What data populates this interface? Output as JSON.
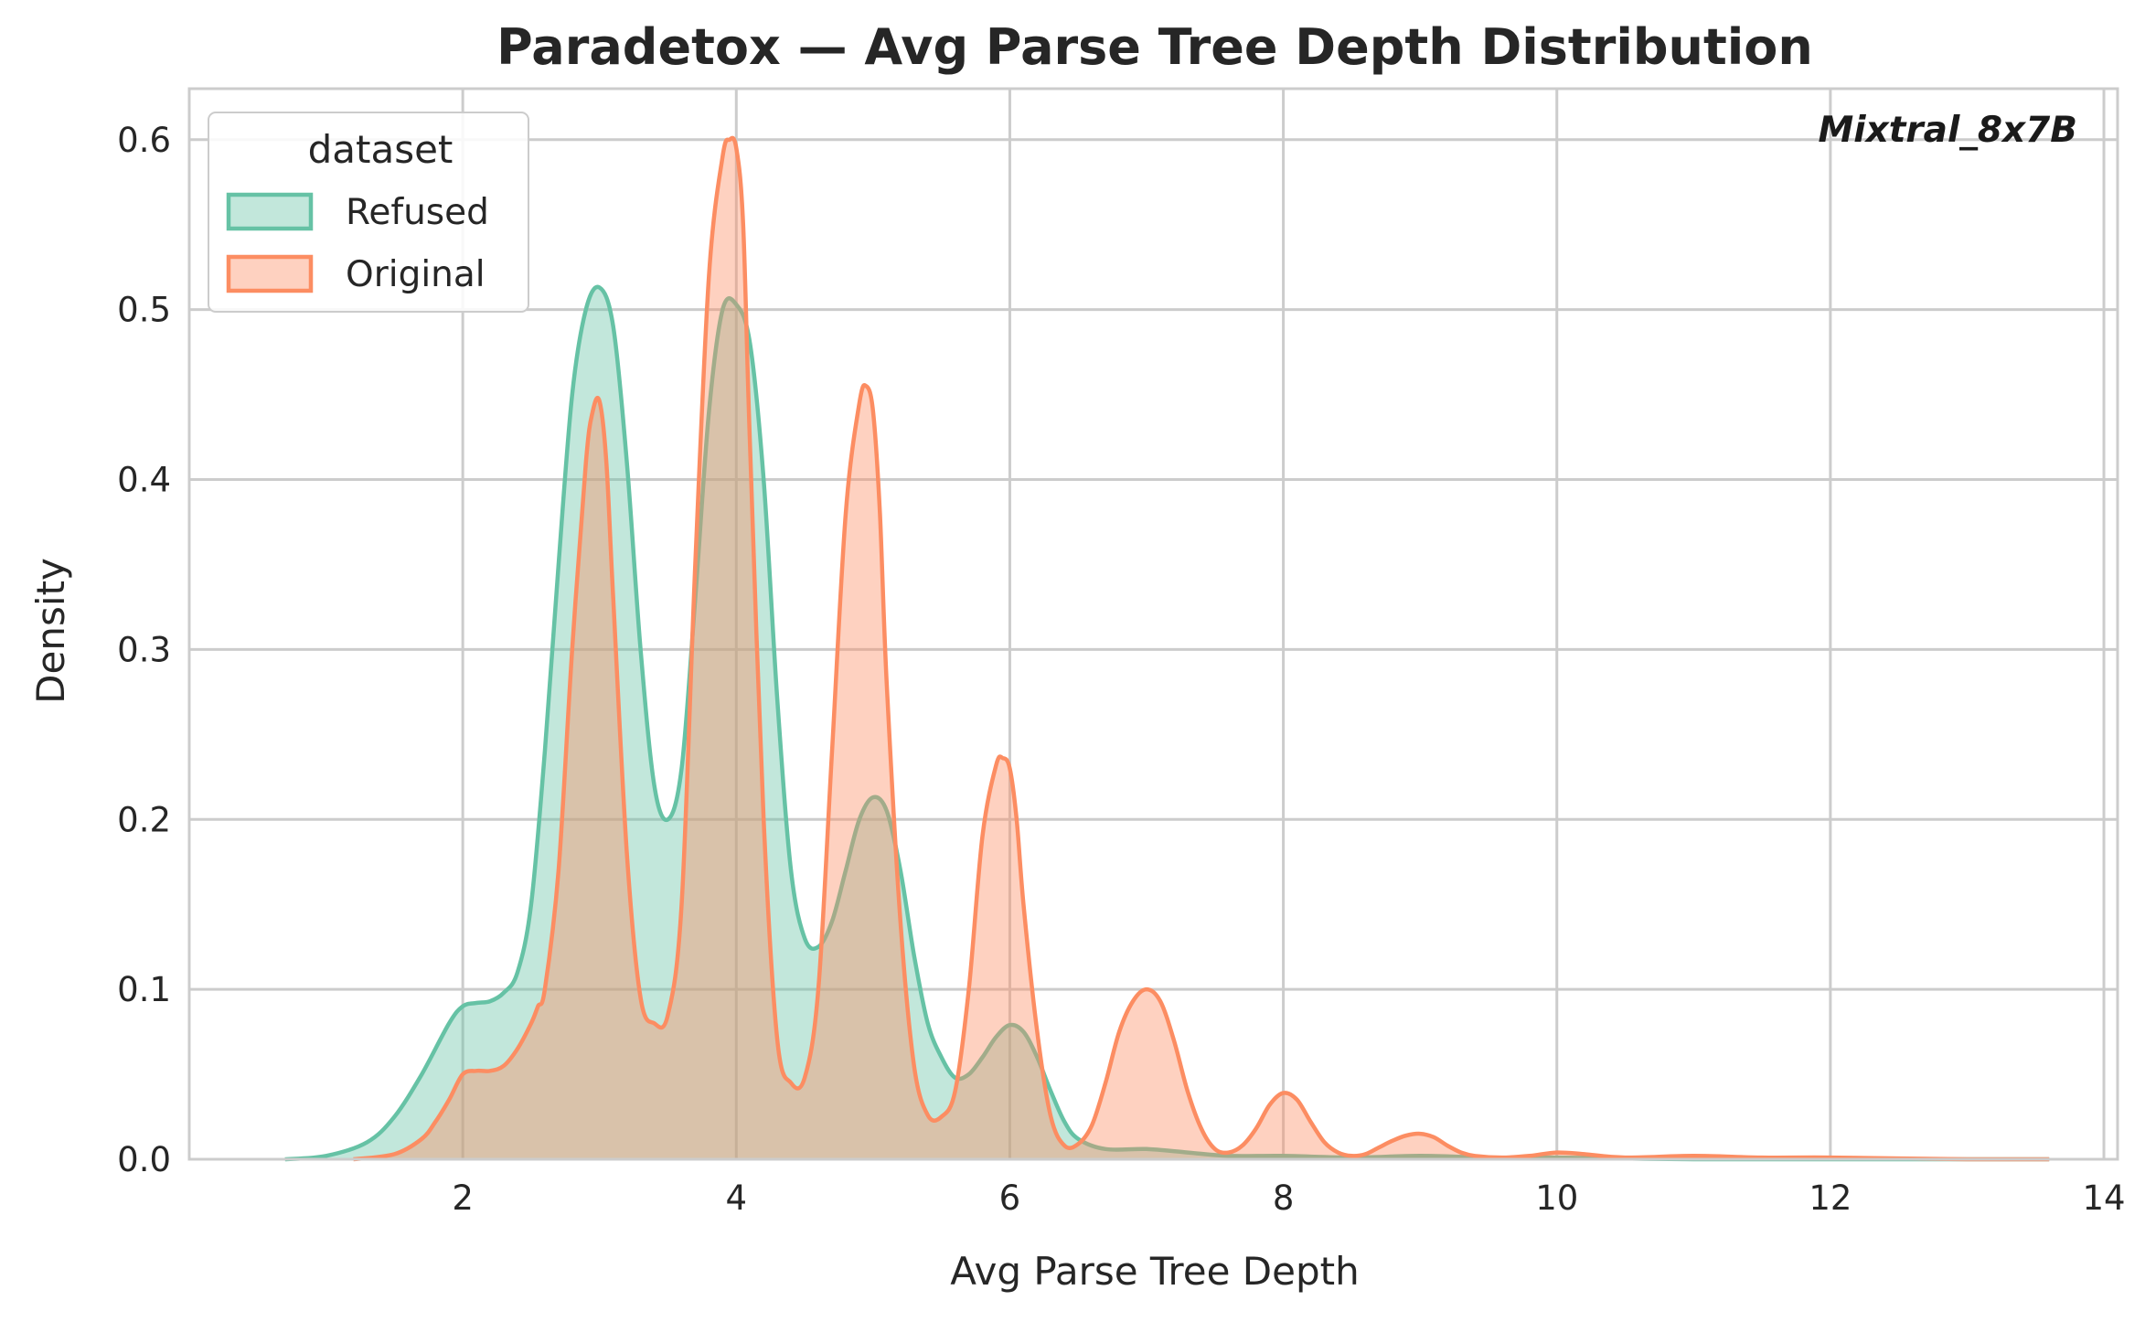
{
  "chart_data": {
    "type": "area",
    "title": "Paradetox — Avg Parse Tree Depth Distribution",
    "xlabel": "Avg Parse Tree Depth",
    "ylabel": "Density",
    "annotation": "Mixtral_8x7B",
    "xlim": [
      0.0,
      14.1
    ],
    "ylim": [
      0.0,
      0.63
    ],
    "xticks": [
      2,
      4,
      6,
      8,
      10,
      12,
      14
    ],
    "yticks": [
      0.0,
      0.1,
      0.2,
      0.3,
      0.4,
      0.5,
      0.6
    ],
    "grid": true,
    "legend": {
      "title": "dataset",
      "placement": "top-left"
    },
    "colors": {
      "Refused": "#66c2a5",
      "Original": "#fc8d62"
    },
    "series": [
      {
        "name": "Refused",
        "x": [
          0.7,
          1.0,
          1.3,
          1.5,
          1.7,
          1.9,
          2.0,
          2.1,
          2.2,
          2.3,
          2.4,
          2.5,
          2.6,
          2.7,
          2.8,
          2.9,
          3.0,
          3.1,
          3.2,
          3.3,
          3.4,
          3.5,
          3.6,
          3.7,
          3.8,
          3.9,
          4.0,
          4.1,
          4.2,
          4.3,
          4.4,
          4.5,
          4.6,
          4.7,
          4.8,
          4.9,
          5.0,
          5.1,
          5.2,
          5.3,
          5.4,
          5.5,
          5.6,
          5.7,
          5.8,
          5.9,
          6.0,
          6.1,
          6.2,
          6.3,
          6.4,
          6.5,
          6.7,
          7.0,
          7.3,
          7.6,
          8.0,
          8.5,
          9.0,
          9.5,
          10.0,
          11.0,
          12.0,
          13.6
        ],
        "y": [
          0.0,
          0.002,
          0.01,
          0.025,
          0.05,
          0.08,
          0.09,
          0.092,
          0.093,
          0.098,
          0.11,
          0.15,
          0.24,
          0.35,
          0.45,
          0.5,
          0.513,
          0.49,
          0.41,
          0.3,
          0.22,
          0.2,
          0.23,
          0.33,
          0.44,
          0.5,
          0.503,
          0.48,
          0.4,
          0.27,
          0.17,
          0.13,
          0.125,
          0.14,
          0.17,
          0.2,
          0.213,
          0.205,
          0.17,
          0.12,
          0.08,
          0.06,
          0.048,
          0.05,
          0.06,
          0.072,
          0.079,
          0.075,
          0.06,
          0.04,
          0.022,
          0.012,
          0.006,
          0.006,
          0.004,
          0.002,
          0.002,
          0.001,
          0.002,
          0.001,
          0.001,
          0.0,
          0.0,
          0.0
        ]
      },
      {
        "name": "Original",
        "x": [
          1.2,
          1.5,
          1.7,
          1.8,
          1.9,
          2.0,
          2.1,
          2.2,
          2.3,
          2.4,
          2.5,
          2.55,
          2.6,
          2.7,
          2.8,
          2.9,
          2.95,
          3.0,
          3.05,
          3.1,
          3.2,
          3.3,
          3.4,
          3.5,
          3.6,
          3.7,
          3.8,
          3.9,
          3.95,
          4.0,
          4.05,
          4.1,
          4.2,
          4.3,
          4.4,
          4.5,
          4.6,
          4.7,
          4.8,
          4.9,
          4.95,
          5.0,
          5.05,
          5.1,
          5.2,
          5.3,
          5.4,
          5.5,
          5.6,
          5.7,
          5.8,
          5.9,
          5.95,
          6.0,
          6.05,
          6.1,
          6.2,
          6.3,
          6.4,
          6.5,
          6.6,
          6.7,
          6.8,
          6.9,
          7.0,
          7.1,
          7.2,
          7.3,
          7.4,
          7.5,
          7.6,
          7.7,
          7.8,
          7.9,
          8.0,
          8.1,
          8.2,
          8.3,
          8.4,
          8.5,
          8.6,
          8.7,
          8.8,
          8.9,
          9.0,
          9.1,
          9.2,
          9.3,
          9.4,
          9.6,
          9.8,
          10.0,
          10.2,
          10.5,
          11.0,
          11.5,
          12.0,
          13.0,
          13.6
        ],
        "y": [
          0.0,
          0.003,
          0.012,
          0.022,
          0.035,
          0.05,
          0.052,
          0.052,
          0.055,
          0.065,
          0.08,
          0.09,
          0.1,
          0.17,
          0.3,
          0.41,
          0.44,
          0.446,
          0.41,
          0.33,
          0.18,
          0.095,
          0.08,
          0.085,
          0.15,
          0.35,
          0.52,
          0.59,
          0.6,
          0.595,
          0.55,
          0.42,
          0.2,
          0.07,
          0.045,
          0.048,
          0.1,
          0.24,
          0.38,
          0.445,
          0.455,
          0.44,
          0.38,
          0.28,
          0.14,
          0.055,
          0.026,
          0.025,
          0.04,
          0.1,
          0.19,
          0.232,
          0.236,
          0.23,
          0.2,
          0.15,
          0.075,
          0.025,
          0.008,
          0.009,
          0.02,
          0.045,
          0.075,
          0.093,
          0.1,
          0.093,
          0.07,
          0.04,
          0.018,
          0.006,
          0.004,
          0.008,
          0.018,
          0.032,
          0.039,
          0.035,
          0.022,
          0.01,
          0.004,
          0.002,
          0.003,
          0.007,
          0.011,
          0.014,
          0.015,
          0.013,
          0.008,
          0.004,
          0.002,
          0.001,
          0.002,
          0.004,
          0.003,
          0.001,
          0.002,
          0.001,
          0.001,
          0.0,
          0.0
        ]
      }
    ]
  }
}
